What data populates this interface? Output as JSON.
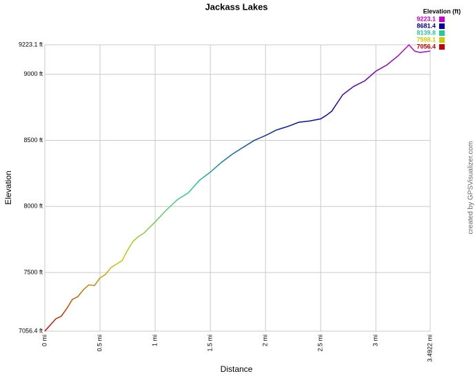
{
  "chart_data": {
    "type": "line",
    "title": "Jackass Lakes",
    "x_label": "Distance",
    "y_label": "Elevation",
    "credit": "created by GPSVisualizer.com",
    "legend_title": "Elevation (ft)",
    "color_scale": [
      {
        "value": 9223.1,
        "color": "#cc00cc"
      },
      {
        "value": 8681.4,
        "color": "#0000aa"
      },
      {
        "value": 8139.8,
        "color": "#22cc99"
      },
      {
        "value": 7598.1,
        "color": "#cccc00"
      },
      {
        "value": 7056.4,
        "color": "#cc0000"
      }
    ],
    "x": [
      0,
      0.1,
      0.15,
      0.2,
      0.25,
      0.3,
      0.35,
      0.4,
      0.45,
      0.5,
      0.55,
      0.6,
      0.7,
      0.75,
      0.8,
      0.85,
      0.9,
      1.0,
      1.1,
      1.2,
      1.3,
      1.4,
      1.5,
      1.6,
      1.7,
      1.8,
      1.9,
      2.0,
      2.1,
      2.2,
      2.3,
      2.4,
      2.5,
      2.55,
      2.6,
      2.7,
      2.8,
      2.9,
      3.0,
      3.1,
      3.2,
      3.3,
      3.35,
      3.4,
      3.4922
    ],
    "series": [
      {
        "name": "Elevation",
        "values": [
          7056.4,
          7150,
          7170,
          7229,
          7297,
          7318,
          7370,
          7407,
          7402,
          7459,
          7486,
          7538,
          7590,
          7669,
          7737,
          7773,
          7800,
          7883,
          7972,
          8051,
          8103,
          8197,
          8260,
          8333,
          8396,
          8449,
          8501,
          8537,
          8579,
          8605,
          8637,
          8647,
          8663,
          8689,
          8721,
          8846,
          8909,
          8951,
          9024,
          9071,
          9139,
          9223.1,
          9176,
          9165,
          9176
        ]
      }
    ],
    "xlim": [
      0,
      3.4922
    ],
    "xticks": [
      {
        "value": 0,
        "label": "0 mi"
      },
      {
        "value": 0.5,
        "label": "0.5 mi"
      },
      {
        "value": 1,
        "label": "1 mi"
      },
      {
        "value": 1.5,
        "label": "1.5 mi"
      },
      {
        "value": 2,
        "label": "2 mi"
      },
      {
        "value": 2.5,
        "label": "2.5 mi"
      },
      {
        "value": 3,
        "label": "3 mi"
      },
      {
        "value": 3.4922,
        "label": "3.4922 mi"
      }
    ],
    "ylim": [
      7056.4,
      9223.1
    ],
    "yticks": [
      {
        "value": 7056.4,
        "label": "7056.4 ft"
      },
      {
        "value": 7500,
        "label": "7500 ft"
      },
      {
        "value": 8000,
        "label": "8000 ft"
      },
      {
        "value": 8500,
        "label": "8500 ft"
      },
      {
        "value": 9000,
        "label": "9000 ft"
      },
      {
        "value": 9223.1,
        "label": "9223.1 ft"
      }
    ],
    "grid": true
  }
}
